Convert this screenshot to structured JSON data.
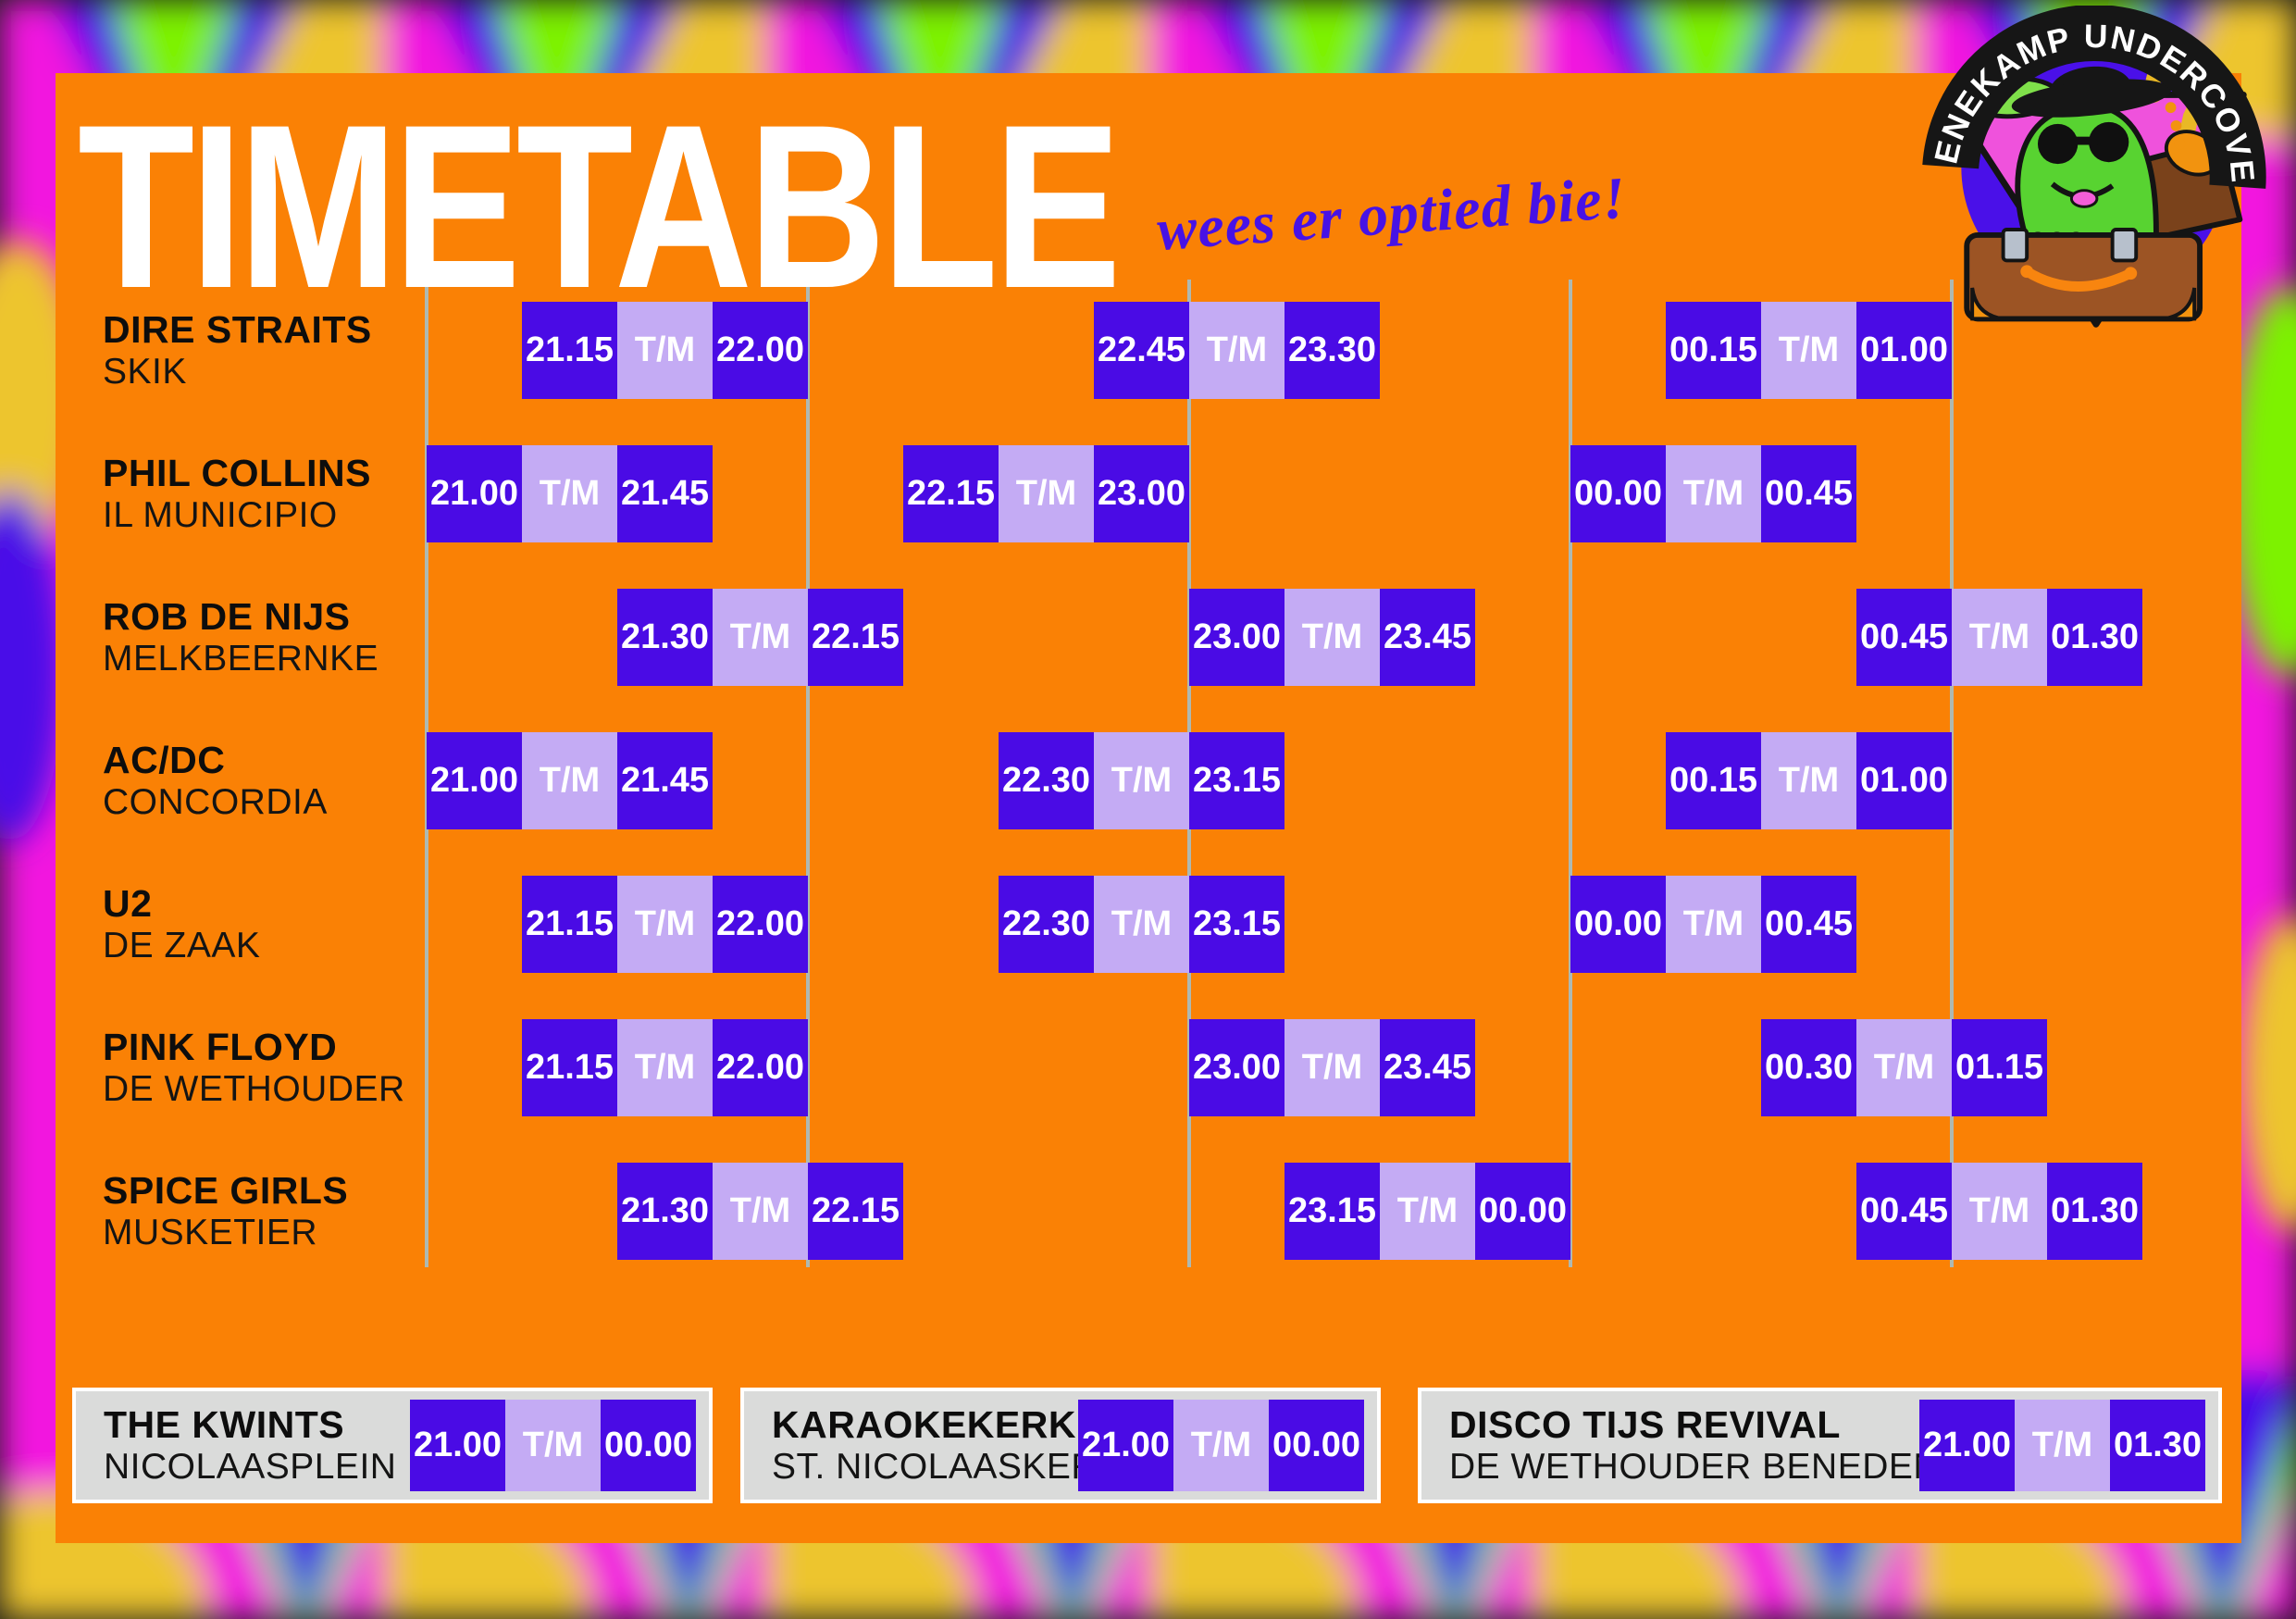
{
  "title": "TIMETABLE",
  "tagline": "wees er optied bie!",
  "logo": {
    "banner_text": "DENEKAMP UNDERCOVER"
  },
  "separator_label": "T/M",
  "colors": {
    "orange_panel": "#FA8105",
    "block_dark": "#4A0BE5",
    "block_light": "#C4ABF4",
    "row_white": "#FFFFFF",
    "row_gray": "#DADBDA",
    "gridline": "#AEB9B2",
    "accent_purple": "#4712E5",
    "magenta_border": "#F216DF",
    "green_border": "#7DF203",
    "blue_border": "#4A0CE8",
    "yellow_border": "#EDC52F"
  },
  "grid": {
    "hour_line_count": 5
  },
  "rows": [
    {
      "artist": "DIRE STRAITS",
      "venue": "SKIK",
      "slots": [
        {
          "start": "21.15",
          "end": "22.00"
        },
        {
          "start": "22.45",
          "end": "23.30"
        },
        {
          "start": "00.15",
          "end": "01.00"
        }
      ]
    },
    {
      "artist": "PHIL COLLINS",
      "venue": "IL MUNICIPIO",
      "slots": [
        {
          "start": "21.00",
          "end": "21.45"
        },
        {
          "start": "22.15",
          "end": "23.00"
        },
        {
          "start": "00.00",
          "end": "00.45"
        }
      ]
    },
    {
      "artist": "ROB DE NIJS",
      "venue": "MELKBEERNKE",
      "slots": [
        {
          "start": "21.30",
          "end": "22.15"
        },
        {
          "start": "23.00",
          "end": "23.45"
        },
        {
          "start": "00.45",
          "end": "01.30"
        }
      ]
    },
    {
      "artist": "AC/DC",
      "venue": "CONCORDIA",
      "slots": [
        {
          "start": "21.00",
          "end": "21.45"
        },
        {
          "start": "22.30",
          "end": "23.15"
        },
        {
          "start": "00.15",
          "end": "01.00"
        }
      ]
    },
    {
      "artist": "U2",
      "venue": "DE ZAAK",
      "slots": [
        {
          "start": "21.15",
          "end": "22.00"
        },
        {
          "start": "22.30",
          "end": "23.15"
        },
        {
          "start": "00.00",
          "end": "00.45"
        }
      ]
    },
    {
      "artist": "PINK FLOYD",
      "venue": "DE WETHOUDER",
      "slots": [
        {
          "start": "21.15",
          "end": "22.00"
        },
        {
          "start": "23.00",
          "end": "23.45"
        },
        {
          "start": "00.30",
          "end": "01.15"
        }
      ]
    },
    {
      "artist": "SPICE GIRLS",
      "venue": "MUSKETIER",
      "slots": [
        {
          "start": "21.30",
          "end": "22.15"
        },
        {
          "start": "23.15",
          "end": "00.00"
        },
        {
          "start": "00.45",
          "end": "01.30"
        }
      ]
    }
  ],
  "footer": [
    {
      "artist": "THE KWINTS",
      "venue": "NICOLAASPLEIN",
      "start": "21.00",
      "end": "00.00"
    },
    {
      "artist": "KARAOKEKERK",
      "venue": "ST. NICOLAASKERK",
      "start": "21.00",
      "end": "00.00"
    },
    {
      "artist": "DISCO TIJS REVIVAL",
      "venue": "DE WETHOUDER BENEDEN",
      "start": "21.00",
      "end": "01.30"
    }
  ]
}
